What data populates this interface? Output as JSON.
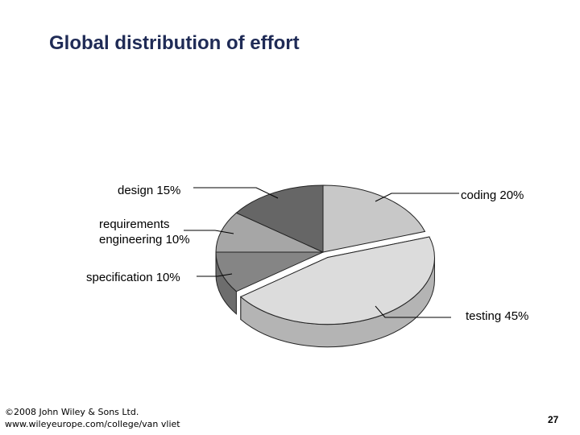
{
  "slide": {
    "title": "Global distribution of effort",
    "footer_line1": "©2008 John Wiley & Sons Ltd.",
    "footer_line2": "www.wileyeurope.com/college/van vliet",
    "page_number": "27"
  },
  "chart_data": {
    "type": "pie",
    "title": "Global distribution of effort",
    "three_d": true,
    "slices": [
      {
        "key": "coding",
        "label": "coding 20%",
        "value": 20,
        "color": "#c8c8c8"
      },
      {
        "key": "testing",
        "label": "testing 45%",
        "value": 45,
        "color": "#dcdcdc",
        "exploded": true
      },
      {
        "key": "specification",
        "label": "specification 10%",
        "value": 10,
        "color": "#858585"
      },
      {
        "key": "requirements",
        "label_lines": [
          "requirements",
          "engineering 10%"
        ],
        "value": 10,
        "color": "#a6a6a6"
      },
      {
        "key": "design",
        "label": "design 15%",
        "value": 15,
        "color": "#666666"
      }
    ]
  }
}
